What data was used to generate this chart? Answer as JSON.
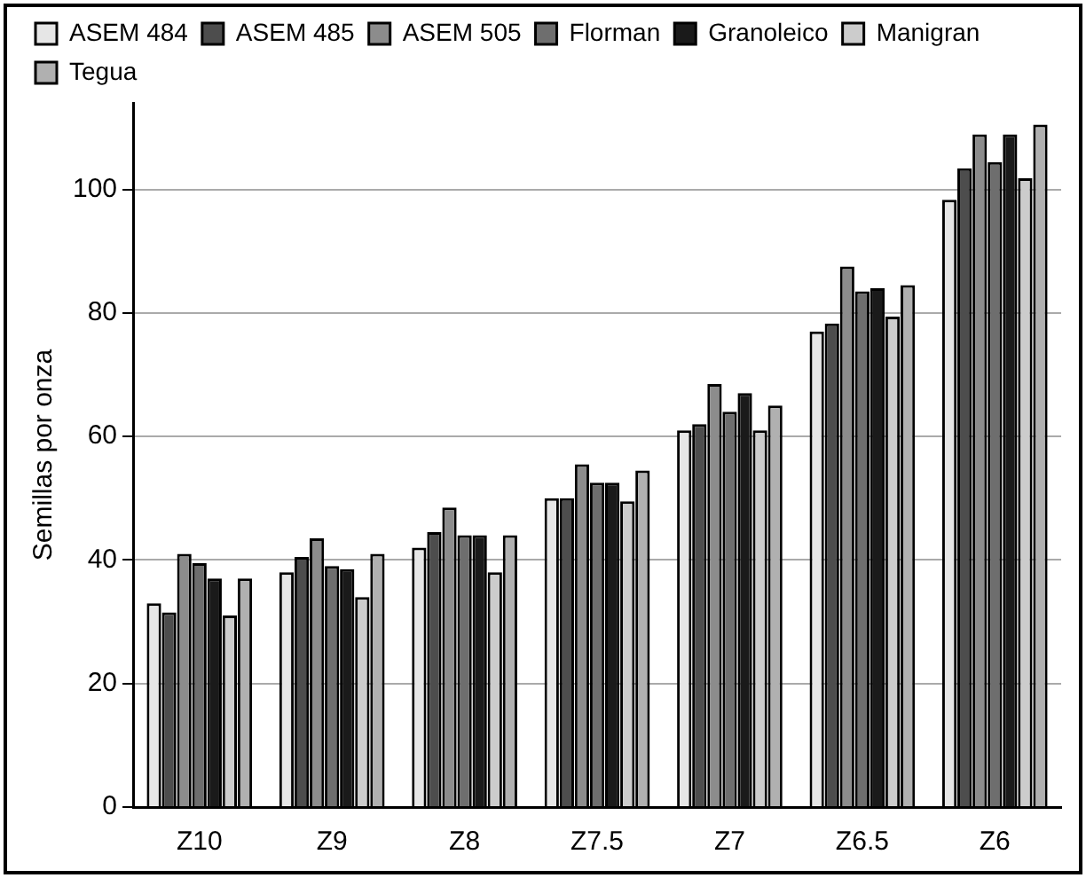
{
  "chart_data": {
    "type": "bar",
    "ylabel": "Semillas por onza",
    "categories": [
      "Z10",
      "Z9",
      "Z8",
      "Z7.5",
      "Z7",
      "Z6.5",
      "Z6"
    ],
    "series": [
      {
        "name": "ASEM 484",
        "color": "#e6e6e6",
        "values": [
          33,
          38,
          42,
          50,
          61,
          77,
          98.3
        ]
      },
      {
        "name": "ASEM 485",
        "color": "#4d4d4d",
        "values": [
          31.5,
          40.5,
          44.5,
          50,
          62,
          78.3,
          103.4
        ]
      },
      {
        "name": "ASEM 505",
        "color": "#8c8c8c",
        "values": [
          41,
          43.5,
          48.5,
          55.5,
          68.5,
          87.5,
          108.9
        ]
      },
      {
        "name": "Florman",
        "color": "#6e6e6e",
        "values": [
          39.5,
          39,
          44,
          52.5,
          64,
          83.5,
          104.4
        ]
      },
      {
        "name": "Granoleico",
        "color": "#1a1a1a",
        "values": [
          37,
          38.5,
          44,
          52.5,
          67,
          84,
          108.9
        ]
      },
      {
        "name": "Manigran",
        "color": "#cccccc",
        "values": [
          31,
          34,
          38,
          49.5,
          61,
          79.4,
          101.8
        ]
      },
      {
        "name": "Tegua",
        "color": "#b0b0b0",
        "values": [
          37,
          41,
          44,
          54.5,
          65,
          84.5,
          110.5
        ]
      }
    ],
    "ylim": [
      0,
      114
    ],
    "yticks": [
      0,
      20,
      40,
      60,
      80,
      100
    ],
    "grid": "y",
    "legend": "top left"
  }
}
